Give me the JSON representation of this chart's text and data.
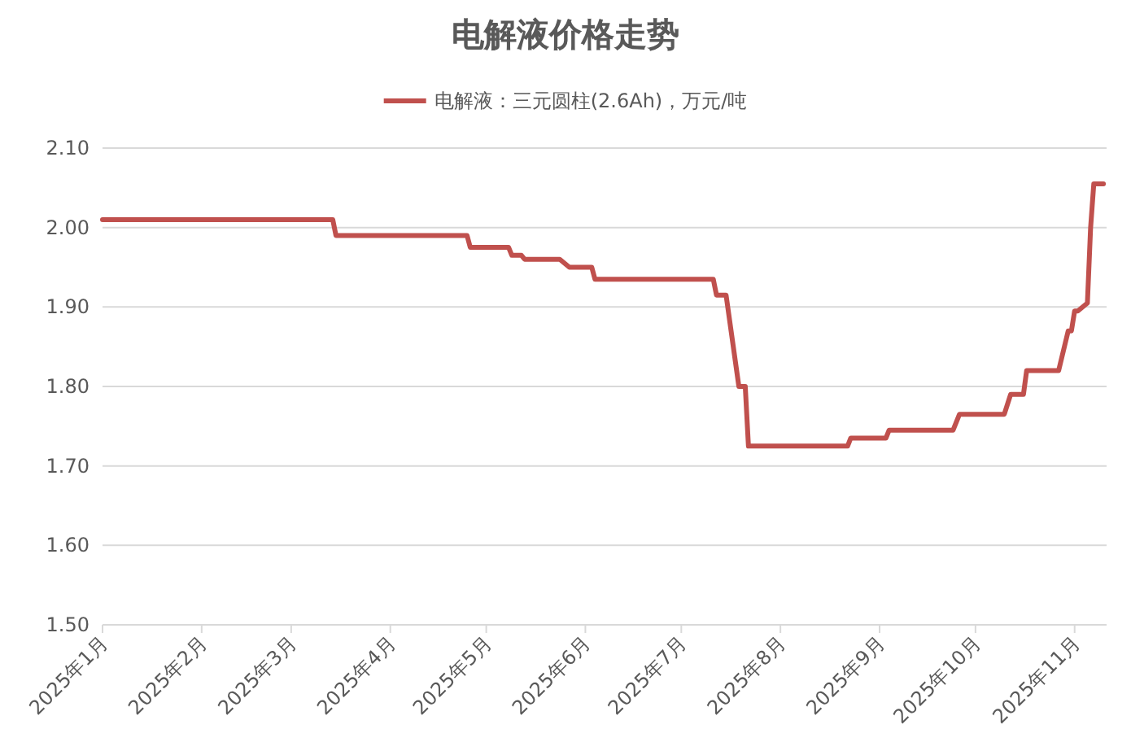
{
  "chart_data": {
    "type": "line",
    "title": "电解液价格走势",
    "x": [
      "2025-01-01",
      "2025-03-14",
      "2025-03-15",
      "2025-04-25",
      "2025-04-26",
      "2025-05-08",
      "2025-05-09",
      "2025-05-12",
      "2025-05-13",
      "2025-05-24",
      "2025-05-27",
      "2025-06-03",
      "2025-06-04",
      "2025-07-11",
      "2025-07-12",
      "2025-07-15",
      "2025-07-19",
      "2025-07-21",
      "2025-07-22",
      "2025-08-22",
      "2025-08-23",
      "2025-09-03",
      "2025-09-04",
      "2025-09-24",
      "2025-09-25",
      "2025-09-26",
      "2025-10-10",
      "2025-10-12",
      "2025-10-16",
      "2025-10-17",
      "2025-10-27",
      "2025-10-30",
      "2025-10-31",
      "2025-11-01",
      "2025-11-02",
      "2025-11-05",
      "2025-11-06",
      "2025-11-07",
      "2025-11-10"
    ],
    "series": [
      {
        "name": "电解液：三元圆柱(2.6Ah)，万元/吨",
        "color": "#c0504d",
        "values": [
          2.01,
          2.01,
          1.99,
          1.99,
          1.975,
          1.975,
          1.965,
          1.965,
          1.96,
          1.96,
          1.95,
          1.95,
          1.935,
          1.935,
          1.915,
          1.915,
          1.8,
          1.8,
          1.725,
          1.725,
          1.735,
          1.735,
          1.745,
          1.745,
          1.755,
          1.765,
          1.765,
          1.79,
          1.79,
          1.82,
          1.82,
          1.87,
          1.87,
          1.895,
          1.895,
          1.905,
          2.0,
          2.055,
          2.055
        ]
      }
    ],
    "xlim": [
      "2025-01-01",
      "2025-11-11"
    ],
    "xticks": [
      {
        "value": "2025-01-01",
        "label": "2025年1月"
      },
      {
        "value": "2025-02-01",
        "label": "2025年2月"
      },
      {
        "value": "2025-03-01",
        "label": "2025年3月"
      },
      {
        "value": "2025-04-01",
        "label": "2025年4月"
      },
      {
        "value": "2025-05-01",
        "label": "2025年5月"
      },
      {
        "value": "2025-06-01",
        "label": "2025年6月"
      },
      {
        "value": "2025-07-01",
        "label": "2025年7月"
      },
      {
        "value": "2025-08-01",
        "label": "2025年8月"
      },
      {
        "value": "2025-09-01",
        "label": "2025年9月"
      },
      {
        "value": "2025-10-01",
        "label": "2025年10月"
      },
      {
        "value": "2025-11-01",
        "label": "2025年11月"
      }
    ],
    "ylim": [
      1.5,
      2.1
    ],
    "yticks": [
      {
        "value": 1.5,
        "label": "1.50"
      },
      {
        "value": 1.6,
        "label": "1.60"
      },
      {
        "value": 1.7,
        "label": "1.70"
      },
      {
        "value": 1.8,
        "label": "1.80"
      },
      {
        "value": 1.9,
        "label": "1.90"
      },
      {
        "value": 2.0,
        "label": "2.00"
      },
      {
        "value": 2.1,
        "label": "2.10"
      }
    ],
    "grid": "y",
    "legend": "top",
    "marker": "none",
    "line_style": "solid"
  }
}
